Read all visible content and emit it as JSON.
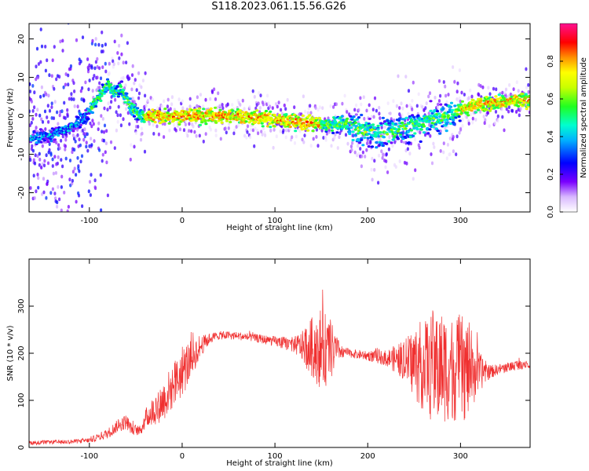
{
  "title": "S118.2023.061.15.56.G26",
  "colors": {
    "snr_line": "#f03030",
    "axes": "#000000"
  },
  "chart_data": [
    {
      "type": "heatmap",
      "xlabel": "Height of straight line (km)",
      "ylabel": "Frequency (Hz)",
      "xlim": [
        -165,
        375
      ],
      "ylim": [
        -25,
        24
      ],
      "xticks": [
        "-100",
        "0",
        "100",
        "200",
        "300"
      ],
      "yticks": [
        "-20",
        "-10",
        "0",
        "10",
        "20"
      ],
      "colorbar": {
        "label": "Normalized spectral amplitude",
        "range": [
          0,
          1
        ],
        "ticks": [
          "0.0",
          "0.2",
          "0.4",
          "0.6",
          "0.8"
        ]
      },
      "ridge": {
        "x": [
          -165,
          -140,
          -120,
          -100,
          -90,
          -80,
          -72,
          -65,
          -55,
          -45,
          -30,
          -10,
          0,
          20,
          40,
          60,
          80,
          100,
          120,
          140,
          160,
          175,
          185,
          195,
          205,
          215,
          225,
          235,
          245,
          255,
          265,
          275,
          285,
          295,
          305,
          320,
          340,
          360,
          375
        ],
        "y": [
          -6,
          -5,
          -3,
          1,
          5,
          8,
          6,
          7,
          2,
          0,
          0,
          0,
          0,
          0,
          0,
          0,
          -0.5,
          -1,
          -1.5,
          -2,
          -2.5,
          -2,
          -3,
          -4,
          -4,
          -5,
          -4,
          -3,
          -3,
          -2,
          -1,
          -1,
          0,
          1,
          2,
          3,
          3.5,
          4,
          4
        ]
      }
    },
    {
      "type": "line",
      "xlabel": "Height of straight line (km)",
      "ylabel": "SNR (10 * v/v)",
      "xlim": [
        -165,
        375
      ],
      "ylim": [
        0,
        400
      ],
      "xticks": [
        "-100",
        "0",
        "100",
        "200",
        "300"
      ],
      "yticks": [
        "0",
        "100",
        "200",
        "300"
      ],
      "envelope": {
        "x": [
          -165,
          -120,
          -100,
          -80,
          -70,
          -60,
          -55,
          -45,
          -40,
          -30,
          -20,
          -10,
          0,
          10,
          20,
          30,
          40,
          50,
          60,
          80,
          100,
          120,
          130,
          140,
          150,
          160,
          170,
          180,
          200,
          220,
          240,
          250,
          260,
          270,
          280,
          290,
          300,
          310,
          320,
          330,
          340,
          360,
          375
        ],
        "mean": [
          10,
          12,
          15,
          30,
          45,
          55,
          40,
          35,
          60,
          80,
          100,
          130,
          160,
          190,
          215,
          232,
          238,
          238,
          237,
          232,
          225,
          218,
          215,
          212,
          210,
          205,
          205,
          200,
          195,
          190,
          185,
          180,
          175,
          175,
          170,
          170,
          165,
          165,
          160,
          160,
          165,
          175,
          180
        ],
        "spread": [
          4,
          4,
          5,
          10,
          12,
          15,
          10,
          10,
          20,
          30,
          40,
          45,
          50,
          40,
          20,
          10,
          8,
          8,
          8,
          8,
          10,
          15,
          30,
          60,
          80,
          60,
          15,
          8,
          10,
          15,
          40,
          70,
          90,
          110,
          110,
          100,
          110,
          90,
          40,
          15,
          10,
          10,
          10
        ]
      }
    }
  ]
}
